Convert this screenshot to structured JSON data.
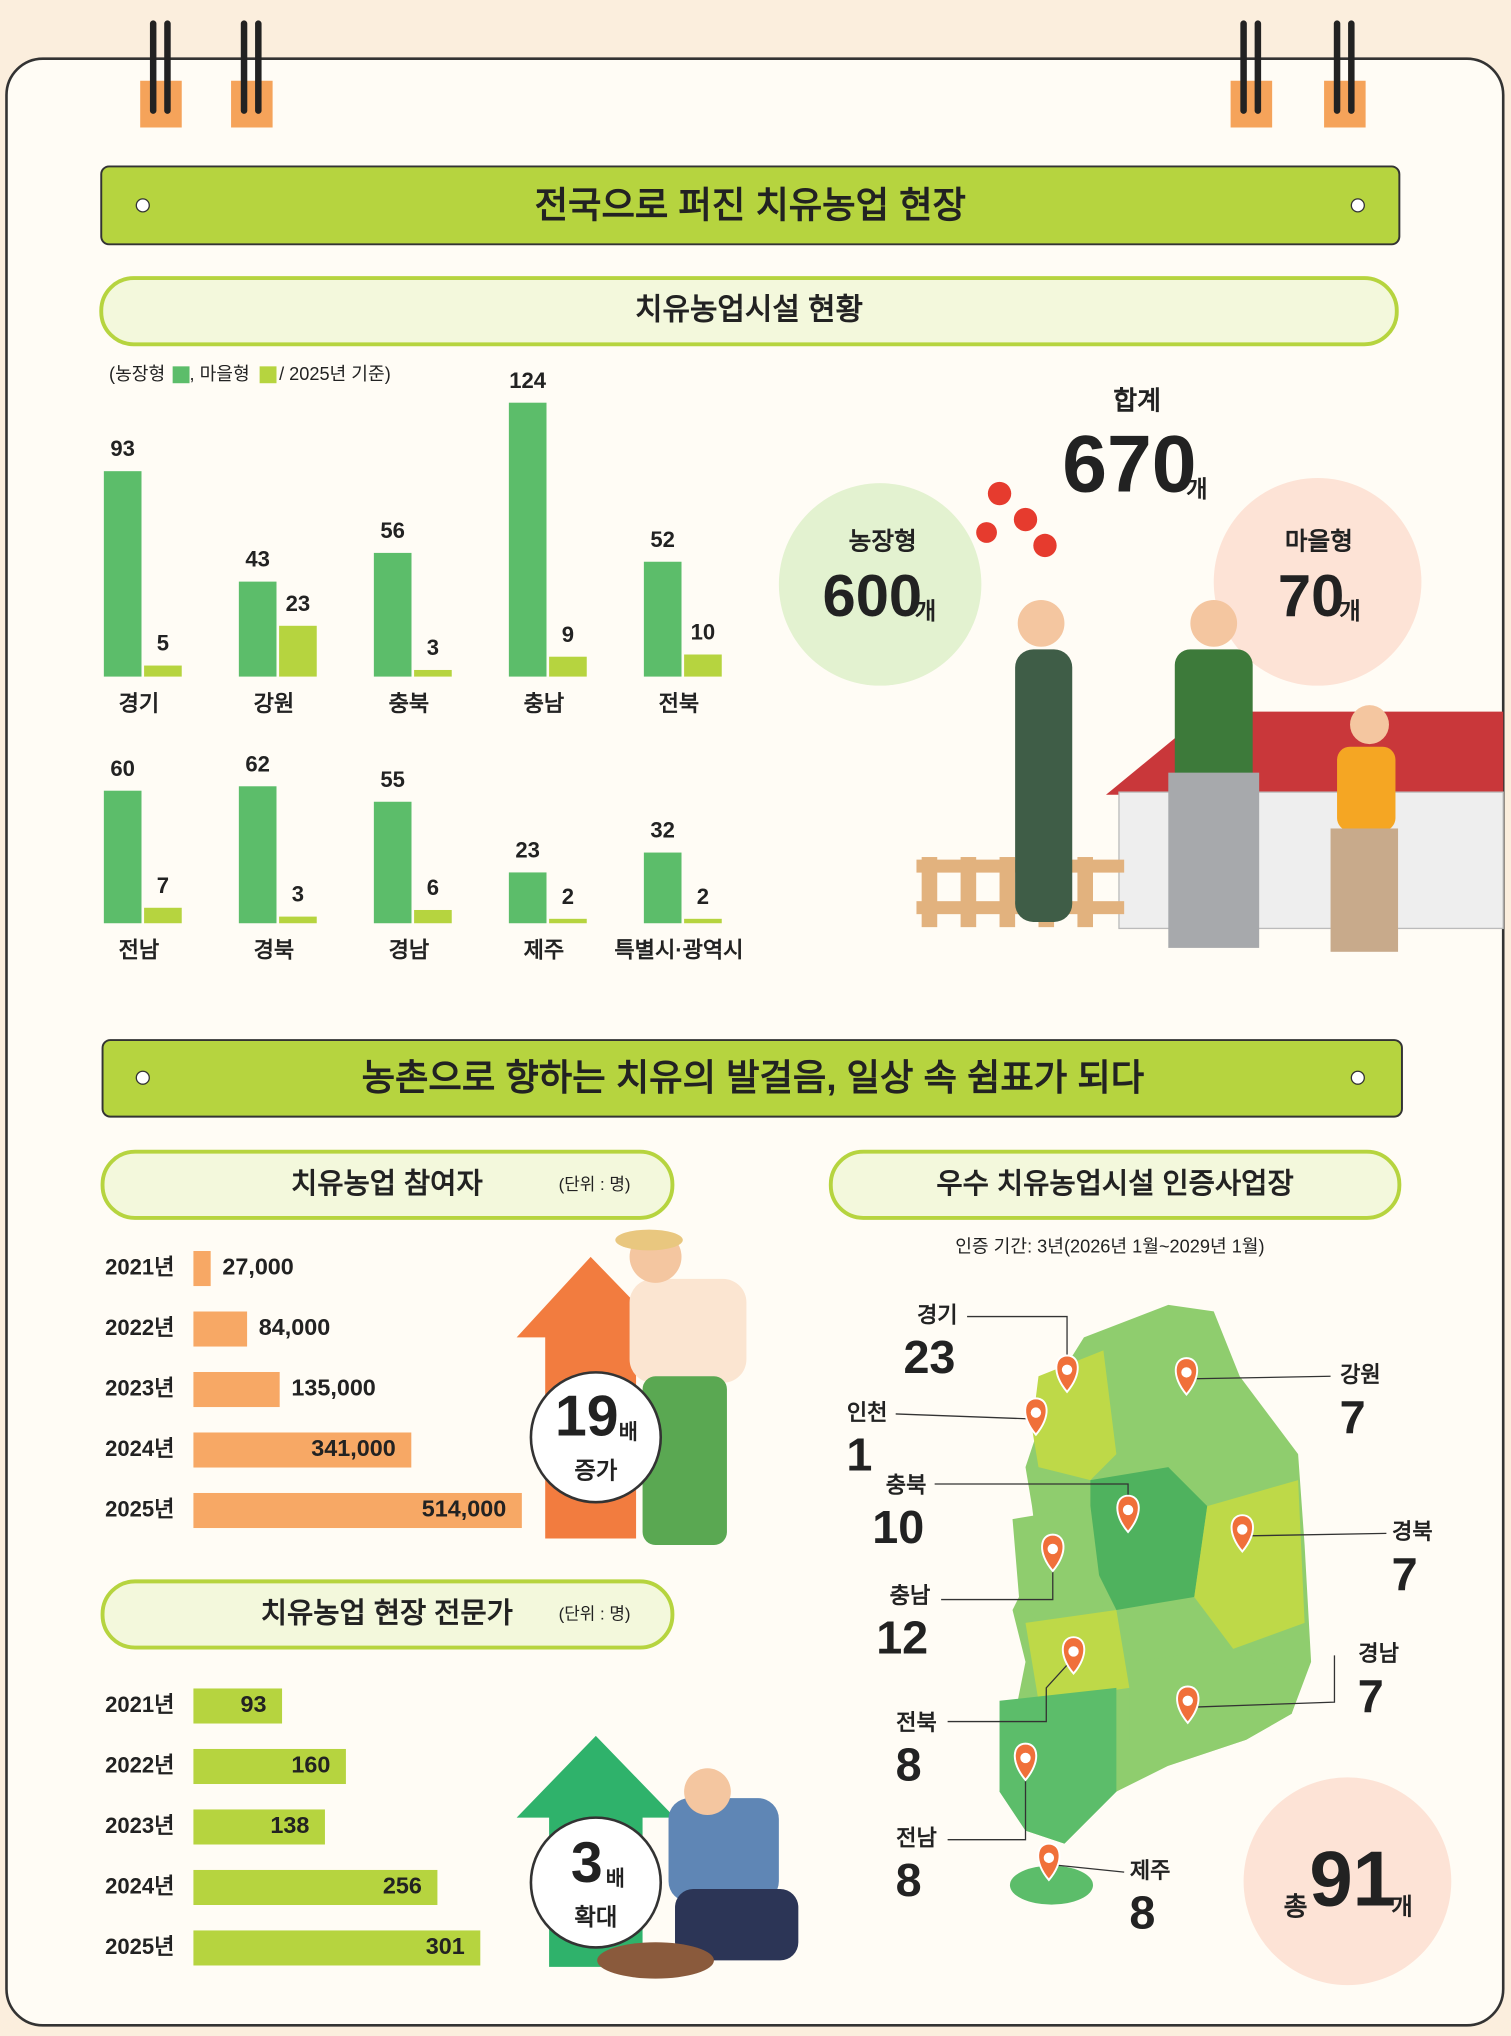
{
  "section1": {
    "title": "전국으로 퍼진 치유농업 현장",
    "facility_chart": {
      "title": "치유농업시설 현황",
      "legend": [
        "(농장형",
        ", 마을형",
        "/ 2025년 기준)"
      ],
      "categories": [
        "경기",
        "강원",
        "충북",
        "충남",
        "전북",
        "전남",
        "경북",
        "경남",
        "제주",
        "특별시·광역시"
      ],
      "series": [
        {
          "name": "농장형",
          "color": "#5cbd6a",
          "values": [
            93,
            43,
            56,
            124,
            52,
            60,
            62,
            55,
            23,
            32
          ]
        },
        {
          "name": "마을형",
          "color": "#b6d43f",
          "values": [
            5,
            23,
            3,
            9,
            10,
            7,
            3,
            6,
            2,
            2
          ]
        }
      ]
    },
    "summary": {
      "total_label": "합계",
      "total": 670,
      "unit": "개",
      "farm_total": 600,
      "village_total": 70
    }
  },
  "section2": {
    "title": "농촌으로 향하는 치유의 발걸음, 일상 속 쉼표가 되다",
    "participants": {
      "title": "치유농업 참여자",
      "unit_note": "(단위 : 명)",
      "color": "#f7a865",
      "categories": [
        "2021년",
        "2022년",
        "2023년",
        "2024년",
        "2025년"
      ],
      "values": [
        27000,
        84000,
        135000,
        341000,
        514000
      ],
      "value_labels": [
        "27,000",
        "84,000",
        "135,000",
        "341,000",
        "514,000"
      ],
      "growth": 19,
      "growth_unit": "배",
      "growth_label": "증가"
    },
    "experts": {
      "title": "치유농업 현장 전문가",
      "unit_note": "(단위 : 명)",
      "color": "#b6d43f",
      "categories": [
        "2021년",
        "2022년",
        "2023년",
        "2024년",
        "2025년"
      ],
      "values": [
        93,
        160,
        138,
        256,
        301
      ],
      "growth": 3,
      "growth_unit": "배",
      "growth_label": "확대"
    },
    "certified": {
      "title": "우수 치유농업시설 인증사업장",
      "period": "인증 기간: 3년(2026년 1월~2029년 1월)",
      "regions": [
        {
          "name": "경기",
          "count": 23
        },
        {
          "name": "강원",
          "count": 7
        },
        {
          "name": "인천",
          "count": 1
        },
        {
          "name": "충북",
          "count": 10
        },
        {
          "name": "경북",
          "count": 7
        },
        {
          "name": "충남",
          "count": 12
        },
        {
          "name": "경남",
          "count": 7
        },
        {
          "name": "전북",
          "count": 8
        },
        {
          "name": "전남",
          "count": 8
        },
        {
          "name": "제주",
          "count": 8
        }
      ],
      "total_prefix": "총",
      "total": 91,
      "unit": "개"
    }
  }
}
